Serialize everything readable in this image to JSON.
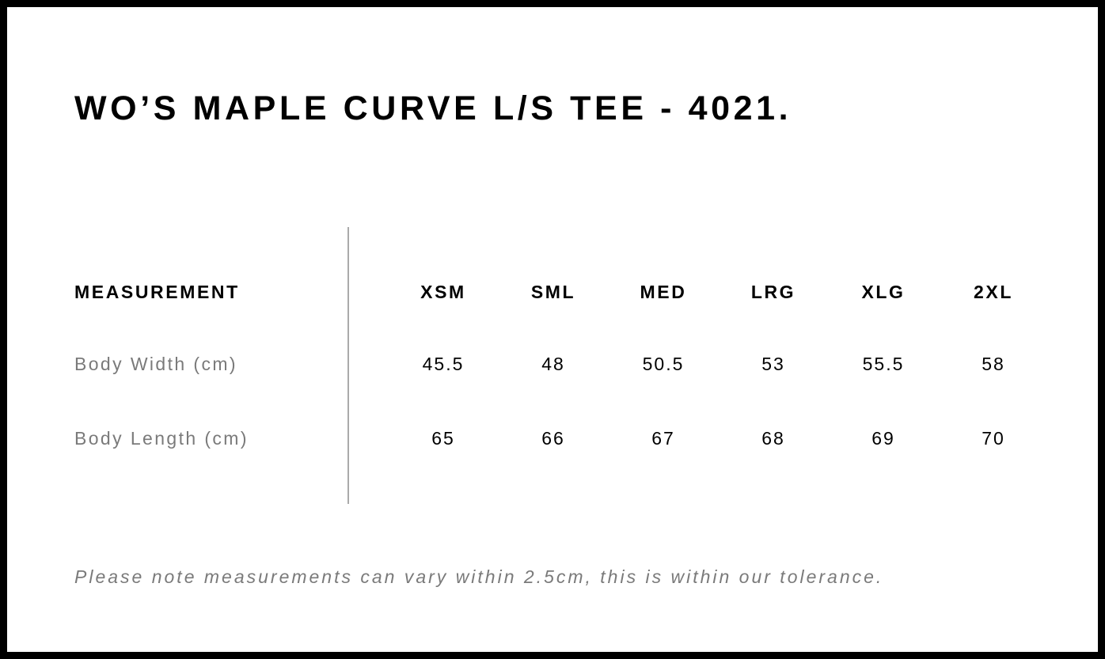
{
  "title": "WO’S MAPLE CURVE L/S TEE - 4021.",
  "table": {
    "header_label": "MEASUREMENT",
    "sizes": [
      "XSM",
      "SML",
      "MED",
      "LRG",
      "XLG",
      "2XL"
    ],
    "rows": [
      {
        "label": "Body Width (cm)",
        "values": [
          "45.5",
          "48",
          "50.5",
          "53",
          "55.5",
          "58"
        ]
      },
      {
        "label": "Body Length (cm)",
        "values": [
          "65",
          "66",
          "67",
          "68",
          "69",
          "70"
        ]
      }
    ]
  },
  "note": "Please note measurements can vary within 2.5cm, this is within our tolerance."
}
